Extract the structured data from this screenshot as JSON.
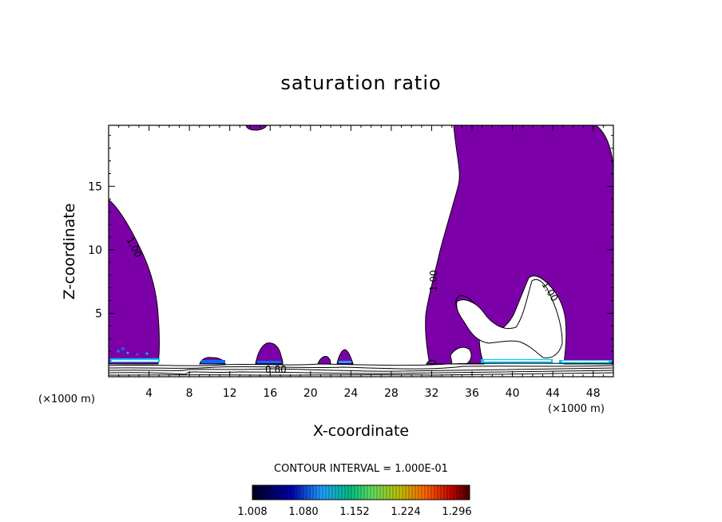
{
  "chart_data": {
    "type": "contour",
    "title": "saturation ratio",
    "xlabel": "X-coordinate",
    "ylabel": "Z-coordinate",
    "x_unit": "(×1000 m)",
    "y_unit": "(×1000 m)",
    "xlim": [
      0,
      50
    ],
    "ylim": [
      0,
      19.8
    ],
    "x_ticks": [
      4,
      8,
      12,
      16,
      20,
      24,
      28,
      32,
      36,
      40,
      44,
      48
    ],
    "y_ticks": [
      5,
      10,
      15
    ],
    "contour_labels": [
      "1.00",
      "1.00",
      "1.00",
      "0.80"
    ],
    "fill_color": "#7c00a8",
    "contour_interval_text": "CONTOUR INTERVAL = 1.000E-01",
    "colorbar": {
      "ticks": [
        "1.008",
        "1.080",
        "1.152",
        "1.224",
        "1.296"
      ],
      "colors": [
        "#000020",
        "#0000b0",
        "#20a0ff",
        "#00c080",
        "#80ff40",
        "#e0ff00",
        "#ff8000",
        "#c00000",
        "#400000"
      ]
    },
    "regions": [
      {
        "name": "left-saturated",
        "x_range": [
          0,
          5
        ],
        "z_range": [
          1.2,
          14
        ]
      },
      {
        "name": "right-saturated",
        "x_range": [
          31,
          50
        ],
        "z_range": [
          1.2,
          19.8
        ]
      },
      {
        "name": "low-cells",
        "x_range": [
          9,
          26
        ],
        "z_range": [
          1.0,
          2.6
        ]
      }
    ]
  }
}
